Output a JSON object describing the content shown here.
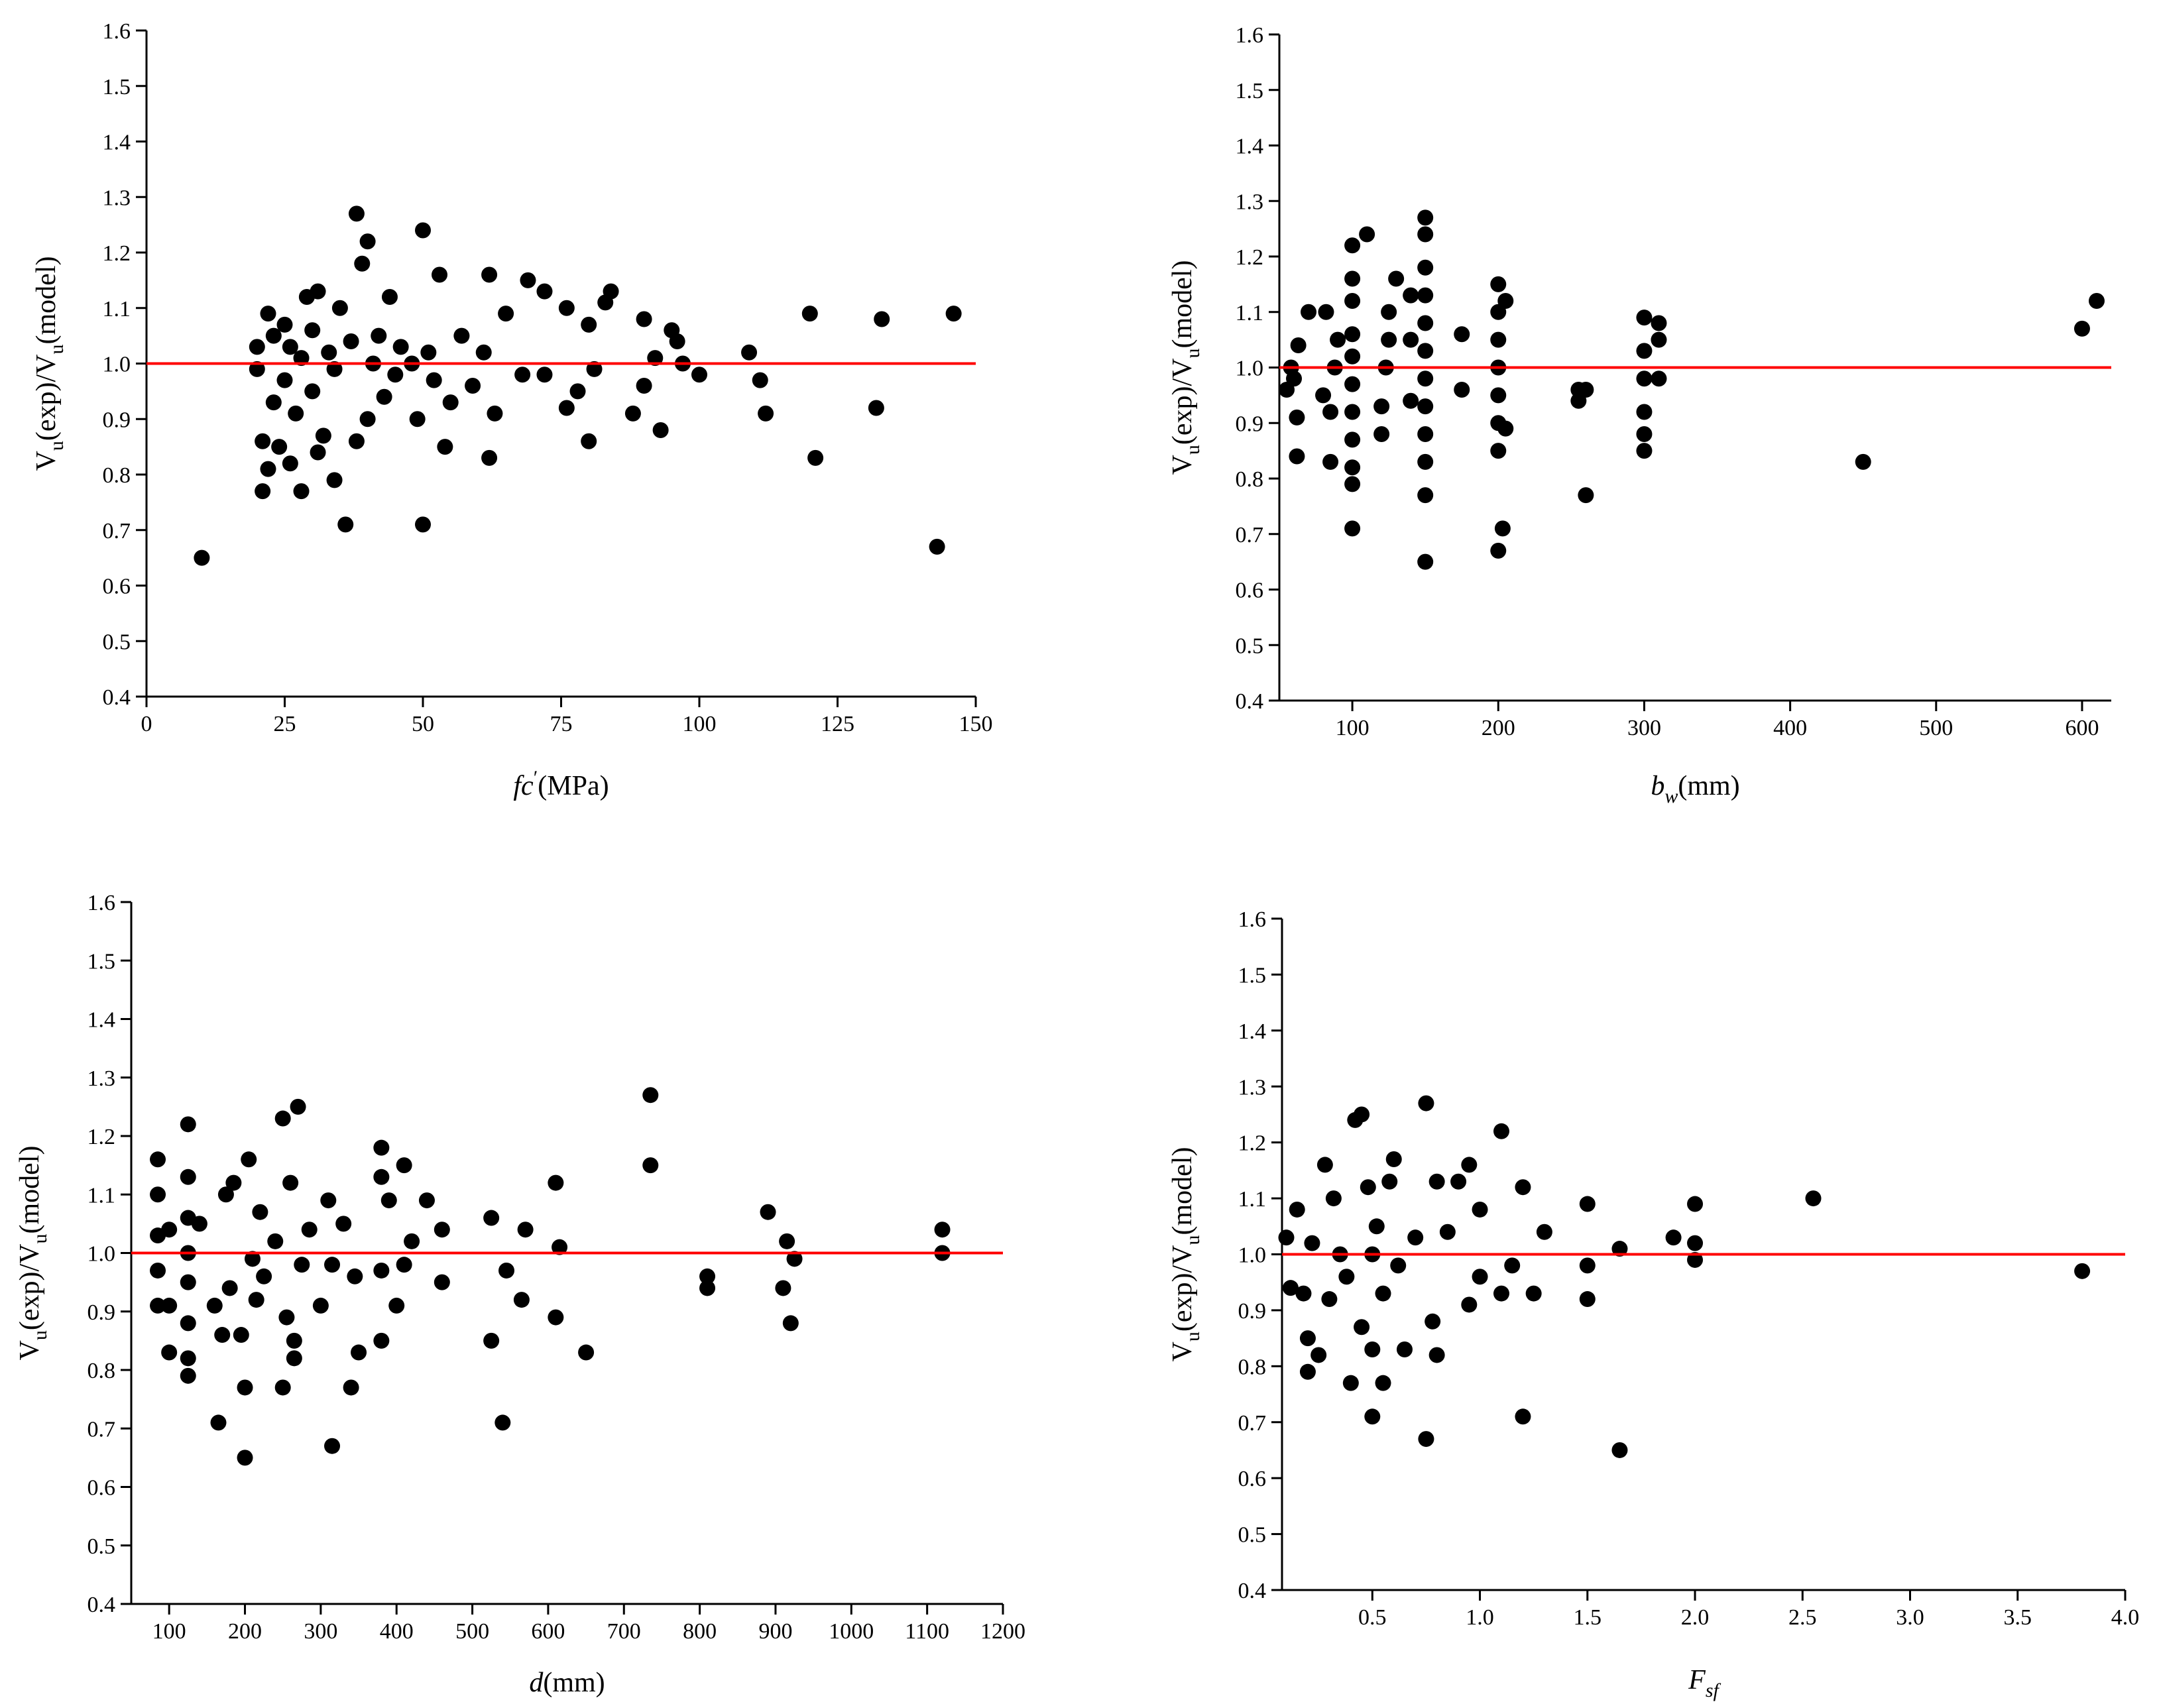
{
  "chart_data": [
    {
      "type": "scatter",
      "color": "#000000",
      "xlabel": [
        {
          "text": "fc",
          "italic": true
        },
        {
          "text": "′",
          "sup": true
        },
        {
          "text": "(MPa)"
        }
      ],
      "ylabel": [
        {
          "text": "V"
        },
        {
          "text": "u",
          "sub": true
        },
        {
          "text": "(exp)/V"
        },
        {
          "text": "u",
          "sub": true
        },
        {
          "text": "(model)"
        }
      ],
      "xlim": [
        0,
        150
      ],
      "ylim": [
        0.4,
        1.6
      ],
      "xticks": [
        0,
        25,
        50,
        75,
        100,
        125,
        150
      ],
      "yticks": [
        0.4,
        0.5,
        0.6,
        0.7,
        0.8,
        0.9,
        {
          "value": 1,
          "label": "1.0"
        },
        1.1,
        1.2,
        1.3,
        1.4,
        1.5,
        1.6
      ],
      "hline": {
        "value": 1,
        "color": "#ff0000"
      },
      "x": [
        10,
        20,
        20,
        21,
        21,
        22,
        22,
        23,
        23,
        24,
        25,
        25,
        26,
        26,
        27,
        28,
        28,
        29,
        30,
        30,
        31,
        31,
        32,
        33,
        34,
        34,
        35,
        36,
        37,
        38,
        38,
        39,
        40,
        40,
        41,
        42,
        43,
        44,
        45,
        46,
        48,
        49,
        50,
        50,
        51,
        52,
        53,
        54,
        55,
        57,
        59,
        61,
        62,
        62,
        63,
        65,
        68,
        69,
        72,
        72,
        76,
        76,
        78,
        80,
        80,
        81,
        83,
        84,
        88,
        90,
        90,
        92,
        93,
        95,
        96,
        97,
        100,
        109,
        111,
        112,
        120,
        121,
        132,
        133,
        143,
        146
      ],
      "y": [
        0.65,
        0.99,
        1.03,
        0.77,
        0.86,
        0.81,
        1.09,
        0.93,
        1.05,
        0.85,
        0.97,
        1.07,
        0.82,
        1.03,
        0.91,
        1.01,
        0.77,
        1.12,
        0.95,
        1.06,
        1.13,
        0.84,
        0.87,
        1.02,
        0.79,
        0.99,
        1.1,
        0.71,
        1.04,
        1.27,
        0.86,
        1.18,
        1.22,
        0.9,
        1.0,
        1.05,
        0.94,
        1.12,
        0.98,
        1.03,
        1.0,
        0.9,
        1.24,
        0.71,
        1.02,
        0.97,
        1.16,
        0.85,
        0.93,
        1.05,
        0.96,
        1.02,
        1.16,
        0.83,
        0.91,
        1.09,
        0.98,
        1.15,
        1.13,
        0.98,
        1.1,
        0.92,
        0.95,
        0.86,
        1.07,
        0.99,
        1.11,
        1.13,
        0.91,
        1.08,
        0.96,
        1.01,
        0.88,
        1.06,
        1.04,
        1.0,
        0.98,
        1.02,
        0.97,
        0.91,
        1.09,
        0.83,
        0.92,
        1.08,
        0.67,
        1.09
      ]
    },
    {
      "type": "scatter",
      "color": "#000000",
      "xlabel": [
        {
          "text": "b",
          "italic": true
        },
        {
          "text": "w",
          "italic": true,
          "sub": true
        },
        {
          "text": "(mm)"
        }
      ],
      "ylabel": [
        {
          "text": "V"
        },
        {
          "text": "u",
          "sub": true
        },
        {
          "text": "(exp)/V"
        },
        {
          "text": "u",
          "sub": true
        },
        {
          "text": "(model)"
        }
      ],
      "xlim": [
        50,
        620
      ],
      "ylim": [
        0.4,
        1.6
      ],
      "xticks": [
        100,
        200,
        300,
        400,
        500,
        600
      ],
      "yticks": [
        0.4,
        0.5,
        0.6,
        0.7,
        0.8,
        0.9,
        {
          "value": 1,
          "label": "1.0"
        },
        1.1,
        1.2,
        1.3,
        1.4,
        1.5,
        1.6
      ],
      "hline": {
        "value": 1,
        "color": "#ff0000"
      },
      "x": [
        55,
        58,
        60,
        62,
        62,
        63,
        70,
        80,
        82,
        85,
        85,
        88,
        90,
        100,
        100,
        100,
        100,
        100,
        100,
        100,
        100,
        100,
        100,
        100,
        110,
        120,
        120,
        123,
        125,
        125,
        130,
        140,
        140,
        140,
        150,
        150,
        150,
        150,
        150,
        150,
        150,
        150,
        150,
        150,
        150,
        150,
        175,
        175,
        200,
        200,
        200,
        200,
        200,
        200,
        200,
        200,
        203,
        205,
        205,
        255,
        255,
        260,
        260,
        300,
        300,
        300,
        300,
        300,
        300,
        310,
        310,
        310,
        450,
        600,
        610
      ],
      "y": [
        0.96,
        1.0,
        0.98,
        0.84,
        0.91,
        1.04,
        1.1,
        0.95,
        1.1,
        0.83,
        0.92,
        1.0,
        1.05,
        0.71,
        0.79,
        0.82,
        0.87,
        0.92,
        0.97,
        1.02,
        1.06,
        1.12,
        1.16,
        1.22,
        1.24,
        0.88,
        0.93,
        1.0,
        1.05,
        1.1,
        1.16,
        0.94,
        1.05,
        1.13,
        0.65,
        0.77,
        0.83,
        0.88,
        0.93,
        0.98,
        1.03,
        1.08,
        1.13,
        1.18,
        1.24,
        1.27,
        0.96,
        1.06,
        0.67,
        0.85,
        0.9,
        0.95,
        1.0,
        1.05,
        1.1,
        1.15,
        0.71,
        0.89,
        1.12,
        0.94,
        0.96,
        0.77,
        0.96,
        0.85,
        0.88,
        0.92,
        0.98,
        1.03,
        1.09,
        0.98,
        1.05,
        1.08,
        0.83,
        1.07,
        1.12
      ]
    },
    {
      "type": "scatter",
      "color": "#000000",
      "xlabel": [
        {
          "text": "d",
          "italic": true
        },
        {
          "text": "(mm)"
        }
      ],
      "ylabel": [
        {
          "text": "V"
        },
        {
          "text": "u",
          "sub": true
        },
        {
          "text": "(exp)/V"
        },
        {
          "text": "u",
          "sub": true
        },
        {
          "text": "(model)"
        }
      ],
      "xlim": [
        50,
        1200
      ],
      "ylim": [
        0.4,
        1.6
      ],
      "xticks": [
        100,
        200,
        300,
        400,
        500,
        600,
        700,
        800,
        900,
        1000,
        1100,
        1200
      ],
      "yticks": [
        0.4,
        0.5,
        0.6,
        0.7,
        0.8,
        0.9,
        {
          "value": 1,
          "label": "1.0"
        },
        1.1,
        1.2,
        1.3,
        1.4,
        1.5,
        1.6
      ],
      "hline": {
        "value": 1,
        "color": "#ff0000"
      },
      "x": [
        85,
        85,
        85,
        85,
        85,
        100,
        100,
        100,
        125,
        125,
        125,
        125,
        125,
        125,
        125,
        125,
        140,
        160,
        165,
        170,
        175,
        180,
        185,
        195,
        200,
        200,
        205,
        210,
        215,
        220,
        225,
        240,
        250,
        250,
        255,
        260,
        265,
        265,
        270,
        275,
        285,
        300,
        310,
        315,
        315,
        330,
        340,
        345,
        350,
        380,
        380,
        380,
        380,
        390,
        400,
        410,
        410,
        420,
        440,
        460,
        460,
        525,
        525,
        540,
        545,
        565,
        570,
        610,
        610,
        615,
        650,
        735,
        735,
        810,
        810,
        890,
        910,
        915,
        920,
        925,
        1120,
        1120
      ],
      "y": [
        1.16,
        1.1,
        1.03,
        0.97,
        0.91,
        0.83,
        1.04,
        0.91,
        1.22,
        0.79,
        0.82,
        0.88,
        0.95,
        1.0,
        1.06,
        1.13,
        1.05,
        0.91,
        0.71,
        0.86,
        1.1,
        0.94,
        1.12,
        0.86,
        0.65,
        0.77,
        1.16,
        0.99,
        0.92,
        1.07,
        0.96,
        1.02,
        1.23,
        0.77,
        0.89,
        1.12,
        0.82,
        0.85,
        1.25,
        0.98,
        1.04,
        0.91,
        1.09,
        0.67,
        0.98,
        1.05,
        0.77,
        0.96,
        0.83,
        0.85,
        1.18,
        1.13,
        0.97,
        1.09,
        0.91,
        1.15,
        0.98,
        1.02,
        1.09,
        0.95,
        1.04,
        0.85,
        1.06,
        0.71,
        0.97,
        0.92,
        1.04,
        0.89,
        1.12,
        1.01,
        0.83,
        1.27,
        1.15,
        0.94,
        0.96,
        1.07,
        0.94,
        1.02,
        0.88,
        0.99,
        1.04,
        1.0
      ]
    },
    {
      "type": "scatter",
      "color": "#000000",
      "xlabel": [
        {
          "text": "F",
          "italic": true
        },
        {
          "text": "sf",
          "italic": true,
          "sub": true
        }
      ],
      "ylabel": [
        {
          "text": "V"
        },
        {
          "text": "u",
          "sub": true
        },
        {
          "text": "(exp)/V"
        },
        {
          "text": "u",
          "sub": true
        },
        {
          "text": "(model)"
        }
      ],
      "xlim": [
        0.08,
        4
      ],
      "ylim": [
        0.4,
        1.6
      ],
      "xticks": [
        0.5,
        {
          "value": 1,
          "label": "1.0"
        },
        1.5,
        {
          "value": 2,
          "label": "2.0"
        },
        2.5,
        {
          "value": 3,
          "label": "3.0"
        },
        3.5,
        {
          "value": 4,
          "label": "4.0"
        }
      ],
      "yticks": [
        0.4,
        0.5,
        0.6,
        0.7,
        0.8,
        0.9,
        {
          "value": 1,
          "label": "1.0"
        },
        1.1,
        1.2,
        1.3,
        1.4,
        1.5,
        1.6
      ],
      "hline": {
        "value": 1,
        "color": "#ff0000"
      },
      "x": [
        0.1,
        0.12,
        0.15,
        0.18,
        0.2,
        0.2,
        0.22,
        0.25,
        0.28,
        0.3,
        0.32,
        0.35,
        0.38,
        0.4,
        0.42,
        0.45,
        0.45,
        0.48,
        0.5,
        0.5,
        0.5,
        0.52,
        0.55,
        0.55,
        0.58,
        0.6,
        0.62,
        0.65,
        0.7,
        0.75,
        0.75,
        0.78,
        0.8,
        0.8,
        0.85,
        0.9,
        0.95,
        0.95,
        1.0,
        1.0,
        1.1,
        1.1,
        1.15,
        1.2,
        1.2,
        1.25,
        1.3,
        1.5,
        1.5,
        1.5,
        1.65,
        1.65,
        1.9,
        2.0,
        2.0,
        2.0,
        2.55,
        3.8
      ],
      "y": [
        1.03,
        0.94,
        1.08,
        0.93,
        0.85,
        0.79,
        1.02,
        0.82,
        1.16,
        0.92,
        1.1,
        1.0,
        0.96,
        0.77,
        1.24,
        1.25,
        0.87,
        1.12,
        0.71,
        0.83,
        1.0,
        1.05,
        0.77,
        0.93,
        1.13,
        1.17,
        0.98,
        0.83,
        1.03,
        0.67,
        1.27,
        0.88,
        0.82,
        1.13,
        1.04,
        1.13,
        1.16,
        0.91,
        1.08,
        0.96,
        1.22,
        0.93,
        0.98,
        0.71,
        1.12,
        0.93,
        1.04,
        1.09,
        0.92,
        0.98,
        0.65,
        1.01,
        1.03,
        1.09,
        0.99,
        1.02,
        1.1,
        0.97
      ]
    }
  ]
}
